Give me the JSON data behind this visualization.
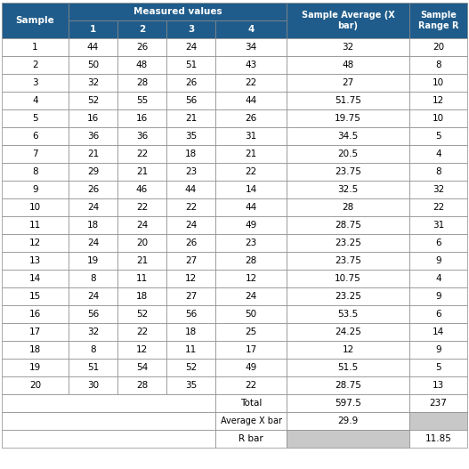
{
  "samples": [
    1,
    2,
    3,
    4,
    5,
    6,
    7,
    8,
    9,
    10,
    11,
    12,
    13,
    14,
    15,
    16,
    17,
    18,
    19,
    20
  ],
  "m1": [
    44,
    50,
    32,
    52,
    16,
    36,
    21,
    29,
    26,
    24,
    18,
    24,
    19,
    8,
    24,
    56,
    32,
    8,
    51,
    30
  ],
  "m2": [
    26,
    48,
    28,
    55,
    16,
    36,
    22,
    21,
    46,
    22,
    24,
    20,
    21,
    11,
    18,
    52,
    22,
    12,
    54,
    28
  ],
  "m3": [
    24,
    51,
    26,
    56,
    21,
    35,
    18,
    23,
    44,
    22,
    24,
    26,
    27,
    12,
    27,
    56,
    18,
    11,
    52,
    35
  ],
  "m4": [
    34,
    43,
    22,
    44,
    26,
    31,
    21,
    22,
    14,
    44,
    49,
    23,
    28,
    12,
    24,
    50,
    25,
    17,
    49,
    22
  ],
  "x_bar": [
    32,
    48,
    27,
    51.75,
    19.75,
    34.5,
    20.5,
    23.75,
    32.5,
    28,
    28.75,
    23.25,
    23.75,
    10.75,
    23.25,
    53.5,
    24.25,
    12,
    51.5,
    28.75
  ],
  "r_bar": [
    20,
    8,
    10,
    12,
    10,
    5,
    4,
    8,
    32,
    22,
    31,
    6,
    9,
    4,
    9,
    6,
    14,
    9,
    5,
    13
  ],
  "total_xbar": "597.5",
  "total_rbar": "237",
  "avg_xbar": "29.9",
  "rbar_value": "11.85",
  "header_bg": "#1f5c8b",
  "header_text": "#ffffff",
  "data_bg": "#ffffff",
  "data_text": "#000000",
  "border_color": "#888888",
  "grey_bg": "#c8c8c8",
  "fig_w": 5.27,
  "fig_h": 5.27,
  "dpi": 100
}
